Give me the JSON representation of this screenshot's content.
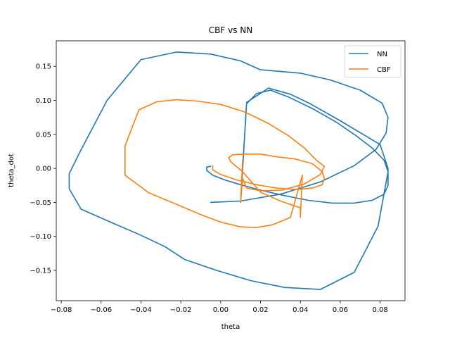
{
  "chart_data": {
    "type": "line",
    "title": "CBF vs NN",
    "xlabel": "theta",
    "ylabel": "theta_dot",
    "xlim": [
      -0.0825,
      0.0925
    ],
    "ylim": [
      -0.1945,
      0.1875
    ],
    "xticks": [
      -0.08,
      -0.06,
      -0.04,
      -0.02,
      0.0,
      0.02,
      0.04,
      0.06,
      0.08
    ],
    "xtick_labels": [
      "−0.08",
      "−0.06",
      "−0.04",
      "−0.02",
      "0.00",
      "0.02",
      "0.04",
      "0.06",
      "0.08"
    ],
    "yticks": [
      -0.15,
      -0.1,
      -0.05,
      0.0,
      0.05,
      0.1,
      0.15
    ],
    "ytick_labels": [
      "−0.15",
      "−0.10",
      "−0.05",
      "0.00",
      "0.05",
      "0.10",
      "0.15"
    ],
    "grid": false,
    "legend_position": "top-right",
    "series": [
      {
        "name": "NN",
        "color": "#1f77b4",
        "x": [
          -0.005,
          -0.007,
          -0.007,
          -0.004,
          0.002,
          0.01,
          0.02,
          0.032,
          0.044,
          0.056,
          0.067,
          0.076,
          0.082,
          0.084,
          0.084,
          0.082,
          0.076,
          0.068,
          0.058,
          0.046,
          0.034,
          0.025,
          0.018,
          0.013,
          0.01,
          0.013,
          0.024,
          0.035,
          0.045,
          0.06,
          0.08,
          0.084,
          0.084,
          0.079,
          0.067,
          0.05,
          0.032,
          0.015,
          -0.002,
          -0.018,
          -0.028,
          -0.041,
          -0.056,
          -0.07,
          -0.076,
          -0.076,
          -0.071,
          -0.057,
          -0.04,
          -0.022,
          -0.005,
          0.01,
          0.02,
          0.04,
          0.055,
          0.07,
          0.081,
          0.084,
          0.083,
          0.078,
          0.067,
          0.05,
          0.03,
          0.01,
          -0.005
        ],
        "y": [
          0.003,
          0.002,
          -0.003,
          -0.01,
          -0.017,
          -0.024,
          -0.032,
          -0.04,
          -0.047,
          -0.051,
          -0.051,
          -0.047,
          -0.038,
          -0.025,
          -0.005,
          0.012,
          0.03,
          0.048,
          0.068,
          0.088,
          0.105,
          0.115,
          0.11,
          0.095,
          -0.05,
          0.097,
          0.118,
          0.109,
          0.095,
          0.07,
          0.035,
          0.0,
          -0.005,
          -0.085,
          -0.153,
          -0.178,
          -0.175,
          -0.165,
          -0.15,
          -0.134,
          -0.115,
          -0.097,
          -0.078,
          -0.06,
          -0.03,
          -0.008,
          0.022,
          0.1,
          0.16,
          0.171,
          0.168,
          0.158,
          0.145,
          0.14,
          0.13,
          0.115,
          0.096,
          0.075,
          0.052,
          0.028,
          0.004,
          -0.02,
          -0.038,
          -0.048,
          -0.05
        ]
      },
      {
        "name": "CBF",
        "color": "#ff7f0e",
        "x": [
          -0.004,
          -0.004,
          0.0,
          0.008,
          0.018,
          0.028,
          0.038,
          0.046,
          0.051,
          0.052,
          0.051,
          0.046,
          0.037,
          0.028,
          0.02,
          0.012,
          0.006,
          0.004,
          0.005,
          0.011,
          0.02,
          0.03,
          0.04,
          0.04,
          0.041,
          0.035,
          0.026,
          0.018,
          0.01,
          0.0,
          -0.01,
          -0.022,
          -0.036,
          -0.048,
          -0.048,
          -0.041,
          -0.032,
          -0.022,
          -0.012,
          0.0,
          0.012,
          0.024,
          0.034,
          0.042,
          0.048,
          0.052,
          0.05,
          0.042,
          0.031,
          0.02,
          0.013,
          0.011,
          0.01,
          0.011
        ],
        "y": [
          0.004,
          -0.002,
          -0.009,
          -0.017,
          -0.024,
          -0.029,
          -0.031,
          -0.029,
          -0.024,
          -0.015,
          -0.005,
          0.007,
          0.014,
          0.017,
          0.021,
          0.021,
          0.02,
          0.016,
          0.01,
          -0.005,
          -0.035,
          -0.048,
          -0.058,
          -0.072,
          -0.01,
          -0.072,
          -0.083,
          -0.087,
          -0.086,
          -0.079,
          -0.068,
          -0.053,
          -0.036,
          -0.01,
          0.033,
          0.086,
          0.098,
          0.101,
          0.099,
          0.094,
          0.083,
          0.066,
          0.048,
          0.03,
          0.012,
          0.003,
          -0.009,
          -0.023,
          -0.032,
          -0.033,
          -0.029,
          -0.015,
          -0.05,
          0.012
        ]
      }
    ]
  }
}
